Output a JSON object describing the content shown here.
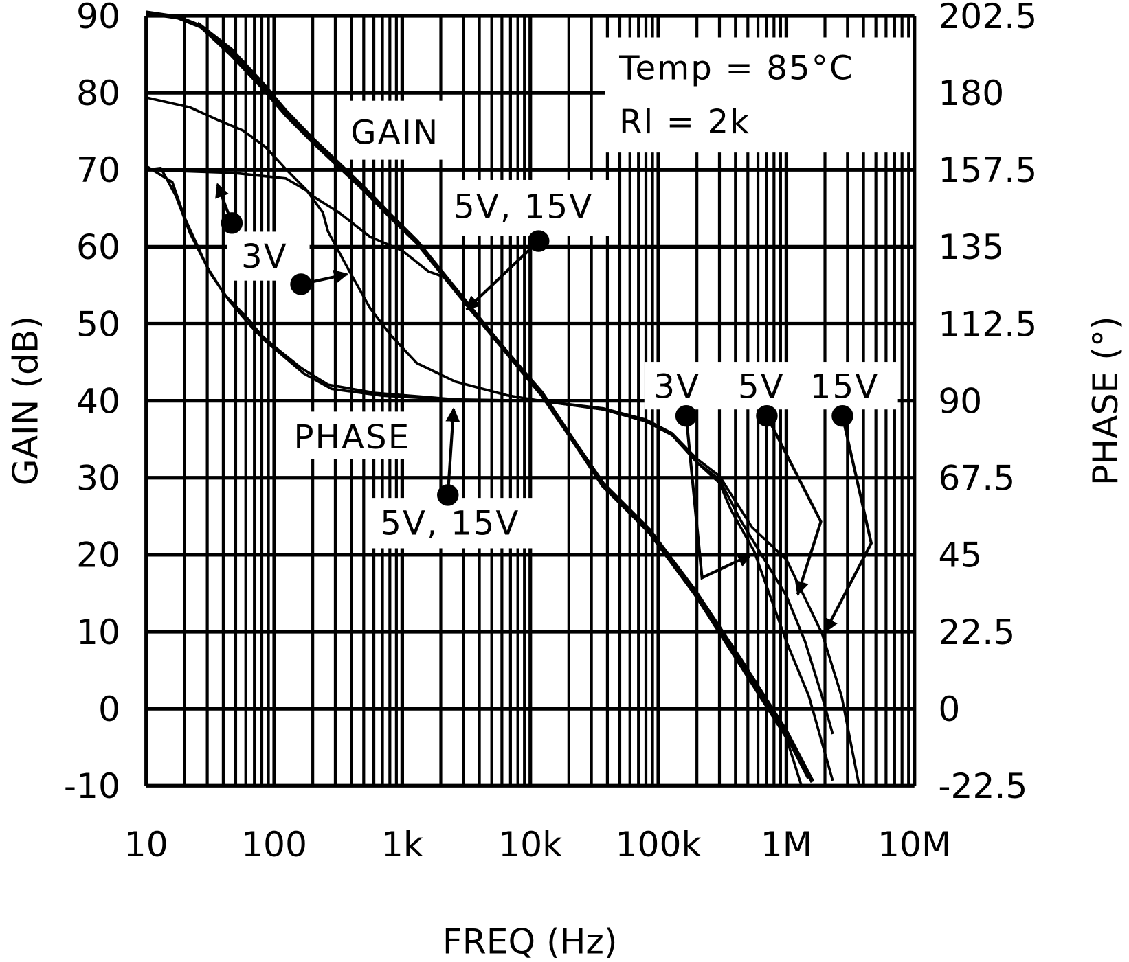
{
  "chart_data": {
    "type": "line",
    "title": "",
    "xlabel": "FREQ (Hz)",
    "ylabel": "GAIN (dB)",
    "y2label": "PHASE (°)",
    "xscale": "log",
    "xlim": [
      10,
      10000000
    ],
    "ylim": [
      -10,
      90
    ],
    "y2lim": [
      -22.5,
      202.5
    ],
    "grid": true,
    "x_ticks": [
      "10",
      "100",
      "1k",
      "10k",
      "100k",
      "1M",
      "10M"
    ],
    "y_ticks": [
      "90",
      "80",
      "70",
      "60",
      "50",
      "40",
      "30",
      "20",
      "10",
      "0",
      "-10"
    ],
    "y2_ticks": [
      "202.5",
      "180",
      "157.5",
      "135",
      "112.5",
      "90",
      "67.5",
      "45",
      "22.5",
      "0",
      "-22.5"
    ],
    "conditions": {
      "temp": "Temp = 85°C",
      "load": "Rl = 2k"
    },
    "annotations": {
      "gain": "GAIN",
      "phase": "PHASE",
      "gain_supplies": "5V, 15V",
      "low_3v": "3V",
      "phase_supplies": "5V, 15V",
      "hf_3v": "3V",
      "hf_5v": "5V",
      "hf_15v": "15V"
    },
    "series": [
      {
        "name": "5V",
        "quantity": "gain",
        "axis": "left",
        "unit": "dB",
        "points": [
          [
            10,
            90.4
          ],
          [
            17.7,
            89.8
          ],
          [
            27,
            88.6
          ],
          [
            46,
            85
          ],
          [
            80,
            80.8
          ],
          [
            123,
            77.2
          ],
          [
            199,
            73.7
          ],
          [
            318,
            70.5
          ],
          [
            512,
            67.3
          ],
          [
            820,
            63.8
          ],
          [
            1300,
            60.6
          ],
          [
            2100,
            56.3
          ],
          [
            3400,
            52
          ],
          [
            5500,
            47.8
          ],
          [
            8700,
            43.9
          ],
          [
            12300,
            41
          ],
          [
            37000,
            29
          ],
          [
            85000,
            23
          ],
          [
            193000,
            15
          ],
          [
            440000,
            6
          ],
          [
            1000000,
            -3.3
          ],
          [
            1500000,
            -9
          ]
        ]
      },
      {
        "name": "15V",
        "quantity": "gain",
        "axis": "left",
        "unit": "dB",
        "points": [
          [
            25,
            89
          ],
          [
            46,
            85.6
          ],
          [
            80,
            81.3
          ],
          [
            123,
            77.6
          ],
          [
            199,
            74
          ],
          [
            318,
            70.8
          ],
          [
            512,
            67.5
          ],
          [
            820,
            64
          ],
          [
            1300,
            60.7
          ],
          [
            2100,
            56.4
          ],
          [
            3400,
            52.1
          ],
          [
            5500,
            47.8
          ],
          [
            8700,
            43.8
          ],
          [
            12300,
            40.8
          ],
          [
            37000,
            29.2
          ],
          [
            85000,
            23.2
          ],
          [
            193000,
            15.3
          ],
          [
            440000,
            6.3
          ],
          [
            1000000,
            -3
          ],
          [
            1600000,
            -9.5
          ]
        ]
      },
      {
        "name": "3V",
        "quantity": "gain",
        "axis": "left",
        "unit": "dB",
        "points": [
          [
            10,
            79.4
          ],
          [
            22,
            78.1
          ],
          [
            36,
            76.5
          ],
          [
            57,
            75.1
          ],
          [
            85,
            73
          ],
          [
            123,
            70.1
          ],
          [
            199,
            66.6
          ],
          [
            318,
            64.5
          ],
          [
            560,
            61.3
          ],
          [
            1000,
            59.5
          ],
          [
            1600,
            56.8
          ],
          [
            2100,
            56.1
          ],
          [
            3400,
            52
          ],
          [
            5500,
            47.8
          ],
          [
            8700,
            43.9
          ],
          [
            12300,
            41
          ],
          [
            37000,
            29
          ],
          [
            85000,
            22.8
          ],
          [
            193000,
            14.8
          ],
          [
            440000,
            5.5
          ],
          [
            1000000,
            -3.8
          ],
          [
            1300000,
            -9.8
          ]
        ]
      },
      {
        "name": "3V",
        "quantity": "phase",
        "axis": "right",
        "unit": "°",
        "points": [
          [
            10,
            157.5
          ],
          [
            48,
            156.6
          ],
          [
            123,
            155
          ],
          [
            180,
            151.4
          ],
          [
            240,
            145
          ],
          [
            263,
            139.5
          ],
          [
            385,
            128
          ],
          [
            562,
            117
          ],
          [
            820,
            109
          ],
          [
            1300,
            101
          ],
          [
            2600,
            95.6
          ],
          [
            6600,
            91.6
          ],
          [
            12000,
            90
          ],
          [
            37000,
            87.5
          ],
          [
            80000,
            84
          ],
          [
            128000,
            80
          ],
          [
            200000,
            72
          ],
          [
            300000,
            66
          ],
          [
            370000,
            58
          ],
          [
            560000,
            46
          ],
          [
            1000000,
            19.6
          ],
          [
            1500000,
            3.6
          ],
          [
            2300000,
            -21
          ]
        ]
      },
      {
        "name": "5V",
        "quantity": "phase",
        "axis": "right",
        "unit": "°",
        "points": [
          [
            10,
            158.6
          ],
          [
            16,
            153.9
          ],
          [
            20,
            143.5
          ],
          [
            30,
            129
          ],
          [
            41,
            121
          ],
          [
            63,
            113.8
          ],
          [
            80,
            109
          ],
          [
            107,
            105
          ],
          [
            162,
            99.6
          ],
          [
            263,
            94.7
          ],
          [
            615,
            92.3
          ],
          [
            2600,
            90.4
          ],
          [
            12000,
            90
          ],
          [
            37000,
            87.5
          ],
          [
            80000,
            84
          ],
          [
            128000,
            80
          ],
          [
            200000,
            72
          ],
          [
            300000,
            67
          ],
          [
            440000,
            55
          ],
          [
            1000000,
            33
          ],
          [
            1400000,
            19.6
          ],
          [
            1900000,
            3.6
          ],
          [
            2300000,
            -7.4
          ]
        ]
      },
      {
        "name": "15V",
        "quantity": "phase",
        "axis": "right",
        "unit": "°",
        "points": [
          [
            10,
            157.5
          ],
          [
            13,
            158
          ],
          [
            17,
            150
          ],
          [
            22,
            139
          ],
          [
            32,
            127
          ],
          [
            45,
            119
          ],
          [
            65,
            112
          ],
          [
            85,
            107.5
          ],
          [
            110,
            104
          ],
          [
            170,
            98
          ],
          [
            280,
            93.5
          ],
          [
            700,
            91.5
          ],
          [
            2600,
            90.3
          ],
          [
            12000,
            90
          ],
          [
            37000,
            87.8
          ],
          [
            80000,
            84.5
          ],
          [
            128000,
            80.5
          ],
          [
            200000,
            73
          ],
          [
            300000,
            68
          ],
          [
            540000,
            53
          ],
          [
            1000000,
            43.6
          ],
          [
            1900000,
            22
          ],
          [
            2700000,
            3.6
          ],
          [
            3700000,
            -22.5
          ]
        ]
      }
    ]
  }
}
